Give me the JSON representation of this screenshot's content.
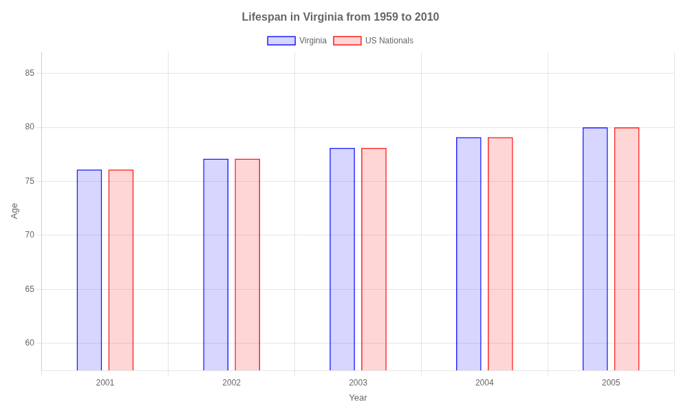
{
  "chart_data": {
    "type": "bar",
    "title": "Lifespan in Virginia from 1959 to 2010",
    "x_label": "Year",
    "y_label": "Age",
    "categories": [
      "2001",
      "2002",
      "2003",
      "2004",
      "2005"
    ],
    "series": [
      {
        "name": "Virginia",
        "color": "#1a1aff",
        "values": [
          76.1,
          77.1,
          78.1,
          79.1,
          80.0
        ]
      },
      {
        "name": "US Nationals",
        "color": "#ff1a1a",
        "values": [
          76.1,
          77.1,
          78.1,
          79.1,
          80.0
        ]
      }
    ],
    "ylim": [
      57.5,
      87
    ],
    "yticks": [
      60,
      65,
      70,
      75,
      80,
      85
    ],
    "grid": true,
    "legend": "top"
  }
}
